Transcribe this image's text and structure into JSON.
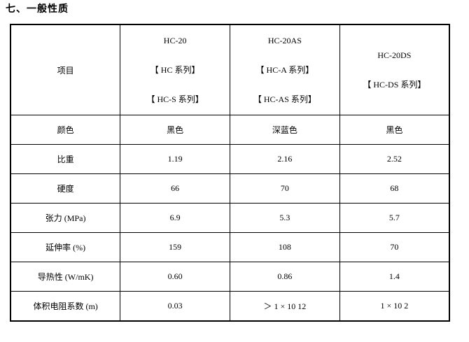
{
  "page": {
    "title": "七、一般性质"
  },
  "table": {
    "header": {
      "item_label": "项目",
      "columns": [
        {
          "lines": [
            "HC-20",
            "【 HC 系列】",
            "【 HC-S 系列】"
          ]
        },
        {
          "lines": [
            "HC-20AS",
            "【 HC-A 系列】",
            "【 HC-AS 系列】"
          ]
        },
        {
          "lines": [
            "HC-20DS",
            "【 HC-DS 系列】"
          ]
        }
      ]
    },
    "rows": [
      {
        "label": "颜色",
        "values": [
          "黑色",
          "深蓝色",
          "黑色"
        ]
      },
      {
        "label": "比重",
        "values": [
          "1.19",
          "2.16",
          "2.52"
        ]
      },
      {
        "label": "硬度",
        "values": [
          "66",
          "70",
          "68"
        ]
      },
      {
        "label": "张力 (MPa)",
        "values": [
          "6.9",
          "5.3",
          "5.7"
        ]
      },
      {
        "label": "延伸率 (%)",
        "values": [
          "159",
          "108",
          "70"
        ]
      },
      {
        "label": "导热性 (W/mK)",
        "values": [
          "0.60",
          "0.86",
          "1.4"
        ]
      },
      {
        "label": "体积电阻系数 (m)",
        "values": [
          "0.03",
          "＞ 1 × 10 12",
          "1 × 10 2"
        ]
      }
    ]
  }
}
